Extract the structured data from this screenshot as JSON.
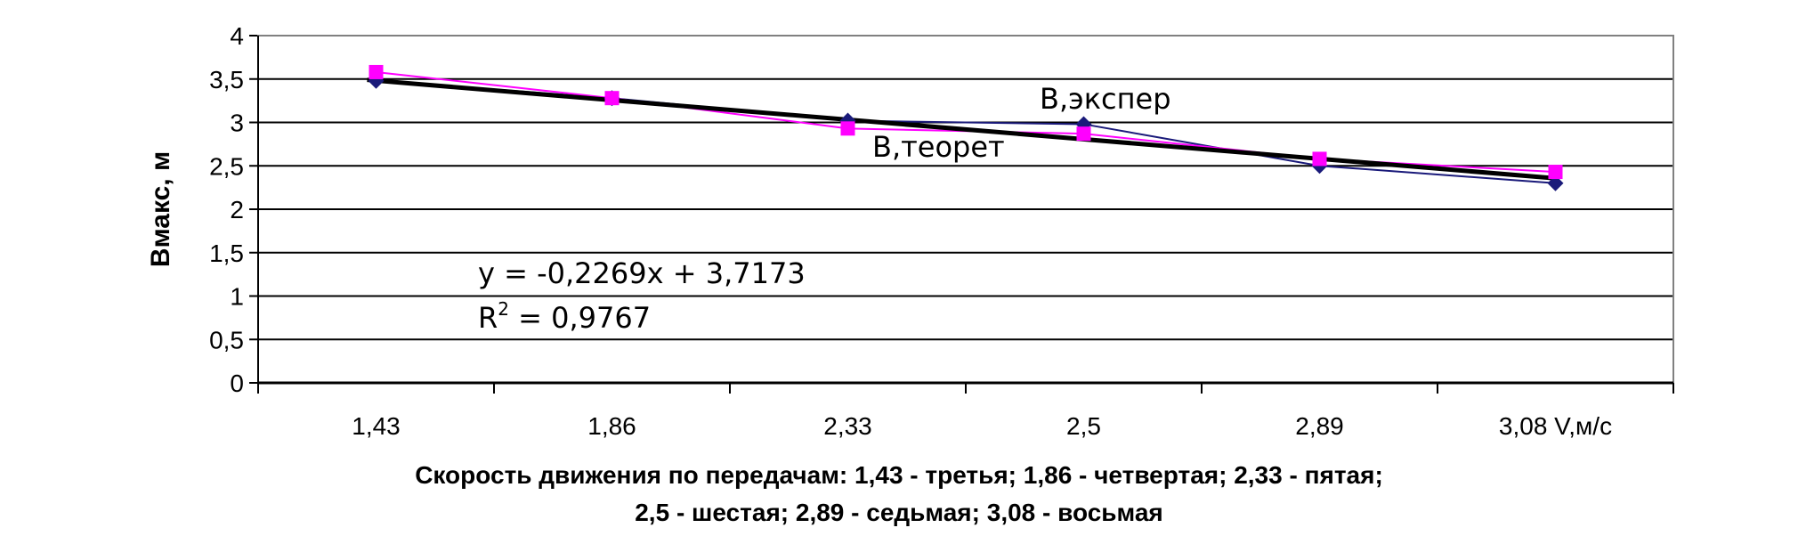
{
  "chart_data": {
    "type": "line",
    "title": "",
    "ylabel": "Вмакс, м",
    "xlabel": "Скорость движения по передачам: 1,43 - третья; 1,86 - четвертая; 2,33 - пятая; 2,5 - шестая; 2,89 - седьмая; 3,08 - восьмая",
    "xlabel_line1": "Скорость движения по передачам: 1,43 - третья;  1,86 - четвертая;    2,33 - пятая;",
    "xlabel_line2": "2,5 - шестая;  2,89 - седьмая;  3,08 - восьмая",
    "x_unit_label": "V,м/с",
    "categories": [
      "1,43",
      "1,86",
      "2,33",
      "2,5",
      "2,89",
      "3,08"
    ],
    "ylim": [
      0,
      4
    ],
    "yticks": [
      "0",
      "0,5",
      "1",
      "1,5",
      "2",
      "2,5",
      "3",
      "3,5",
      "4"
    ],
    "grid": true,
    "series": [
      {
        "name": "B,экспер",
        "values": [
          3.48,
          3.28,
          3.02,
          2.98,
          2.5,
          2.3
        ],
        "color": "#1a1a7a",
        "marker": "diamond"
      },
      {
        "name": "B,теорет",
        "values": [
          3.58,
          3.28,
          2.93,
          2.87,
          2.58,
          2.43
        ],
        "color": "#ff00ff",
        "marker": "square"
      }
    ],
    "trendline": {
      "slope": -0.2269,
      "intercept": 3.7173,
      "color": "#000000"
    },
    "equation": "y = -0,2269x + 3,7173",
    "r2_prefix": "R",
    "r2_sup": "2",
    "r2_value": " = 0,9767"
  }
}
